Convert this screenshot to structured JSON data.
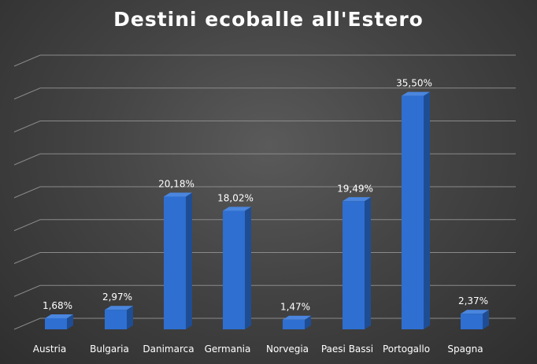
{
  "chart_data": {
    "type": "bar",
    "title": "Destini ecoballe all'Estero",
    "categories": [
      "Austria",
      "Bulgaria",
      "Danimarca",
      "Germania",
      "Norvegia",
      "Paesi Bassi",
      "Portogallo",
      "Spagna"
    ],
    "values": [
      1.68,
      2.97,
      20.18,
      18.02,
      1.47,
      19.49,
      35.5,
      2.37
    ],
    "data_labels": [
      "1,68%",
      "2,97%",
      "20,18%",
      "18,02%",
      "1,47%",
      "19,49%",
      "35,50%",
      "2,37%"
    ],
    "ylim": [
      0,
      40
    ],
    "grid": true,
    "style": "3d",
    "colors": {
      "bar_front": "#2e6fd1",
      "bar_side": "#1f4d94",
      "bar_top": "#4a86df",
      "grid": "#8a8a8a",
      "text": "#ffffff"
    }
  }
}
